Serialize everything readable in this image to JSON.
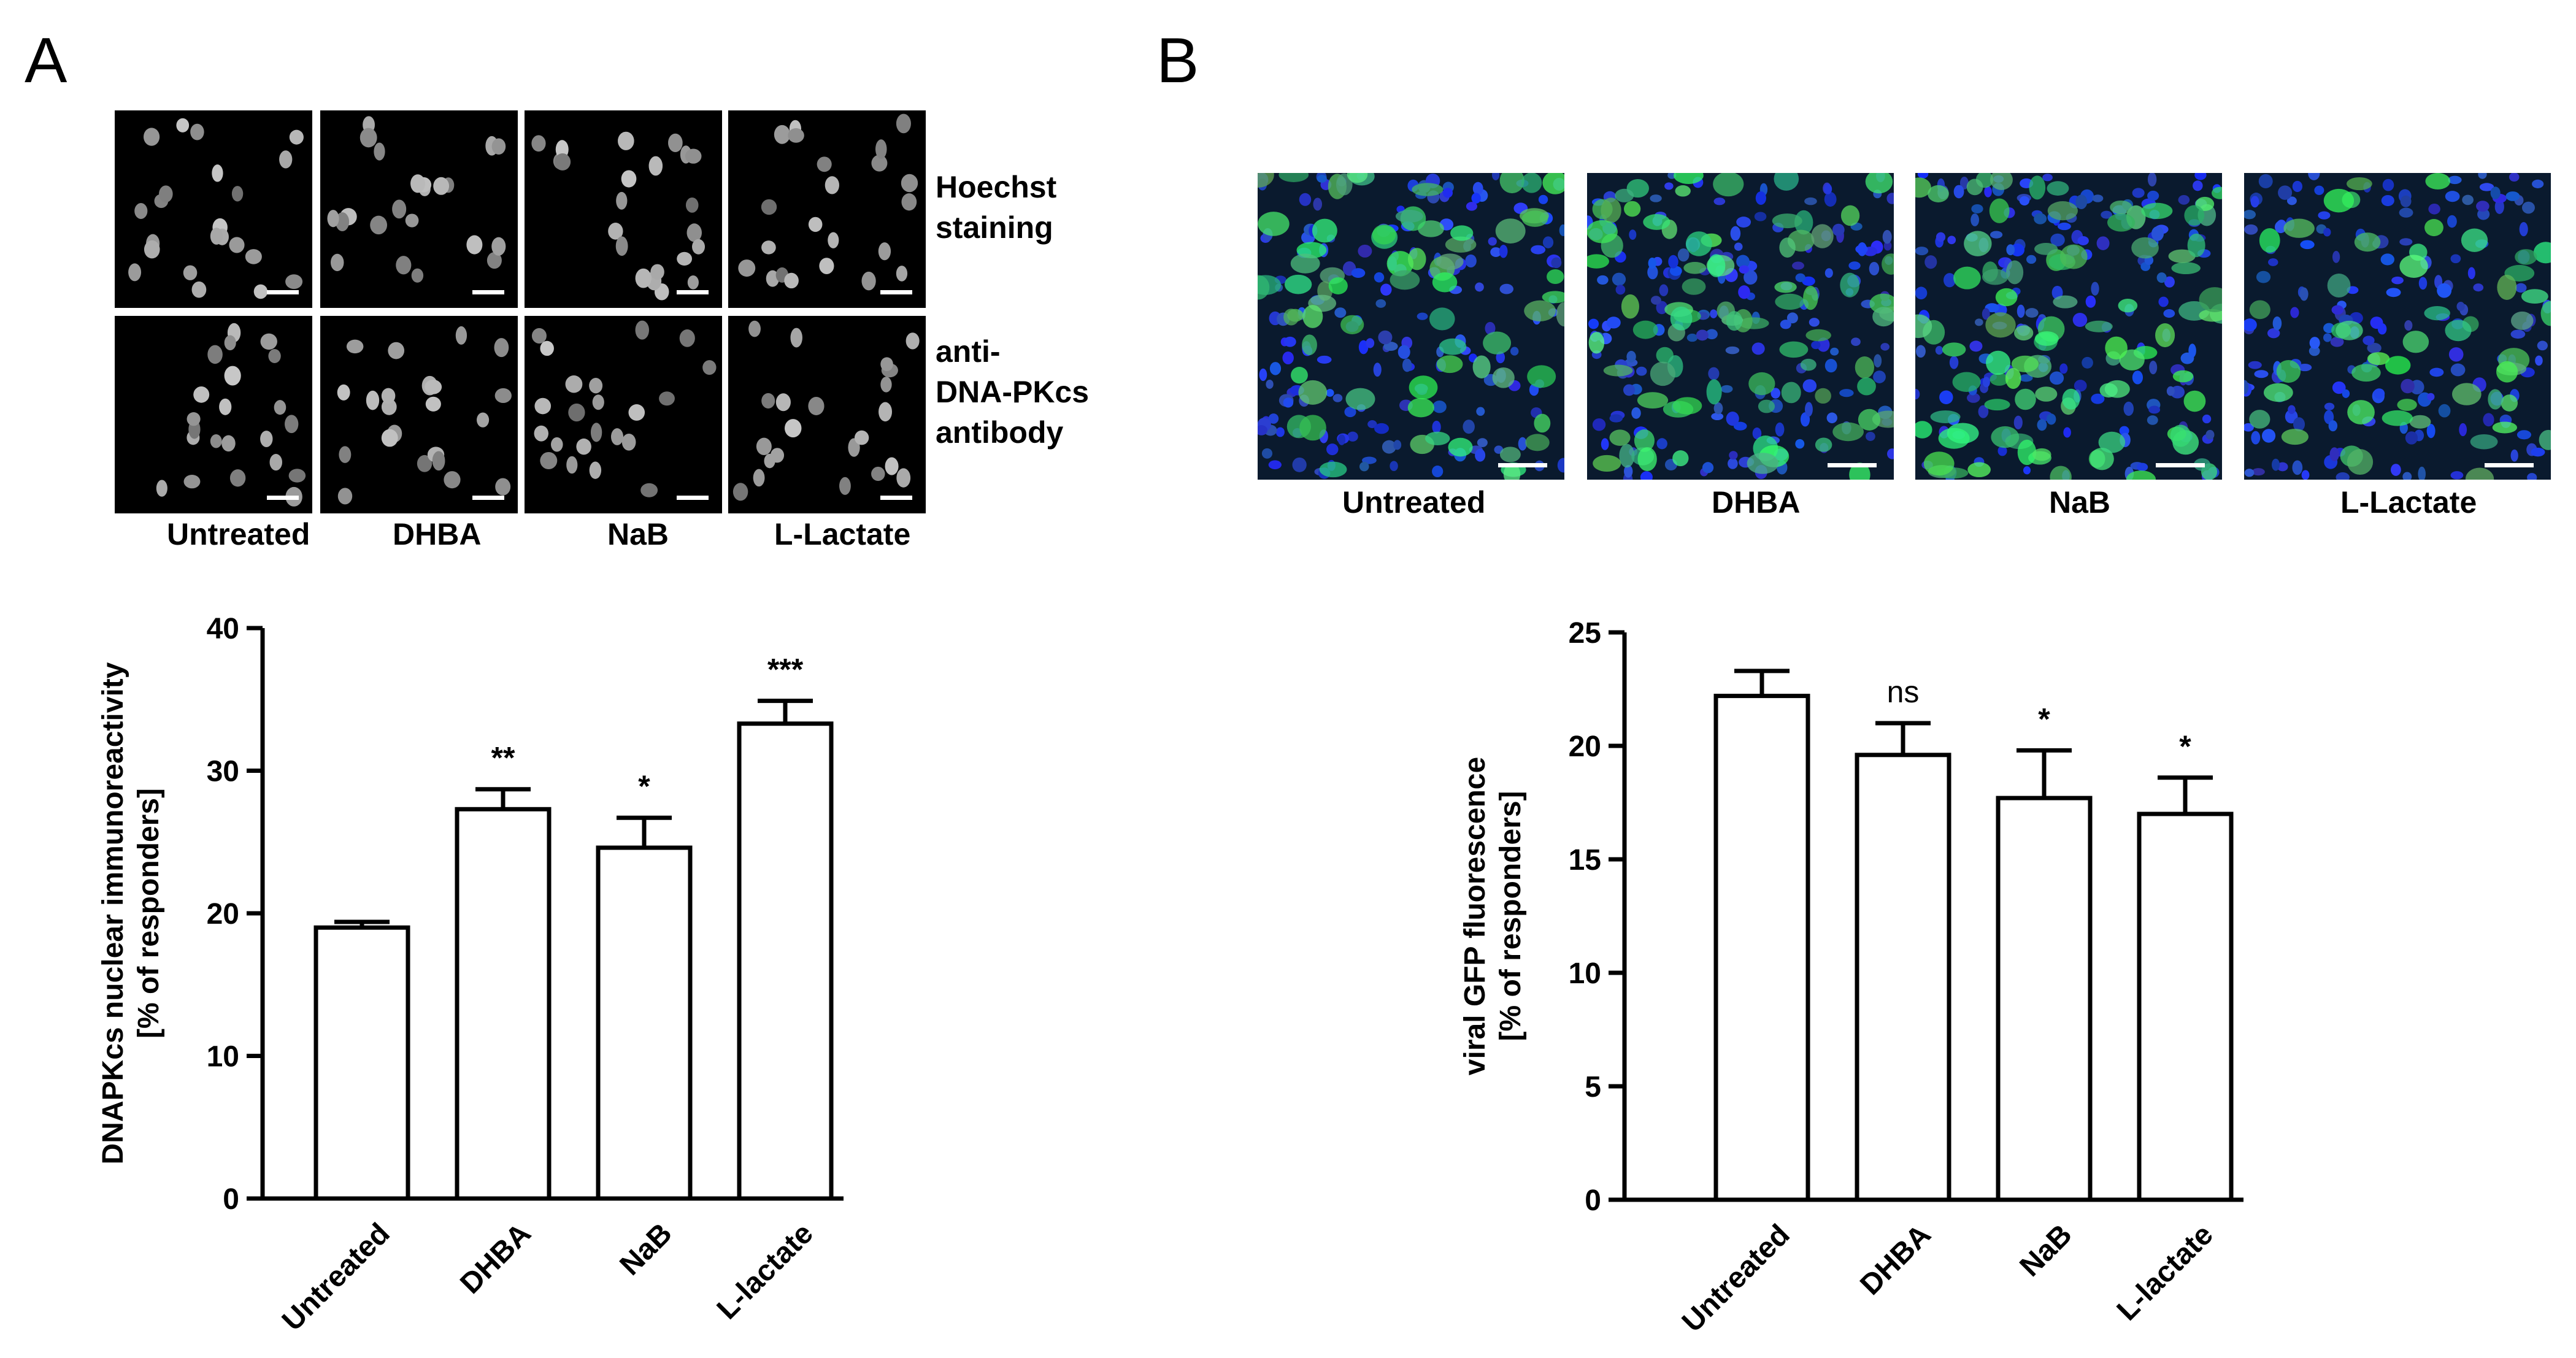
{
  "panels": {
    "A": {
      "letter": "A",
      "row_labels": [
        "Hoechst\nstaining",
        "anti-\nDNA-PKcs\nantibody"
      ],
      "column_labels": [
        "Untreated",
        "DHBA",
        "NaB",
        "L-Lactate"
      ]
    },
    "B": {
      "letter": "B",
      "column_labels": [
        "Untreated",
        "DHBA",
        "NaB",
        "L-Lactate"
      ]
    }
  },
  "chart_data": [
    {
      "type": "bar",
      "categories": [
        "Untreated",
        "DHBA",
        "NaB",
        "L-lactate"
      ],
      "values": [
        19.0,
        27.3,
        24.6,
        33.3
      ],
      "errors": [
        0.4,
        1.4,
        2.1,
        1.6
      ],
      "significance": [
        "",
        "**",
        "*",
        "***"
      ],
      "ylabel": "DNAPKcs nuclear immunoreactivity\n[% of responders]",
      "ylim": [
        0,
        40
      ],
      "yticks": [
        0,
        10,
        20,
        30,
        40
      ],
      "grid": false,
      "bar_color": "#ffffff",
      "edge_color": "#000000"
    },
    {
      "type": "bar",
      "categories": [
        "Untreated",
        "DHBA",
        "NaB",
        "L-lactate"
      ],
      "values": [
        22.2,
        19.6,
        17.7,
        17.0
      ],
      "errors": [
        1.1,
        1.4,
        2.1,
        1.6
      ],
      "significance": [
        "",
        "ns",
        "*",
        "*"
      ],
      "ylabel": "viral GFP fluorescence\n[% of responders]",
      "ylim": [
        0,
        25
      ],
      "yticks": [
        0,
        5,
        10,
        15,
        20,
        25
      ],
      "grid": false,
      "bar_color": "#ffffff",
      "edge_color": "#000000"
    }
  ]
}
